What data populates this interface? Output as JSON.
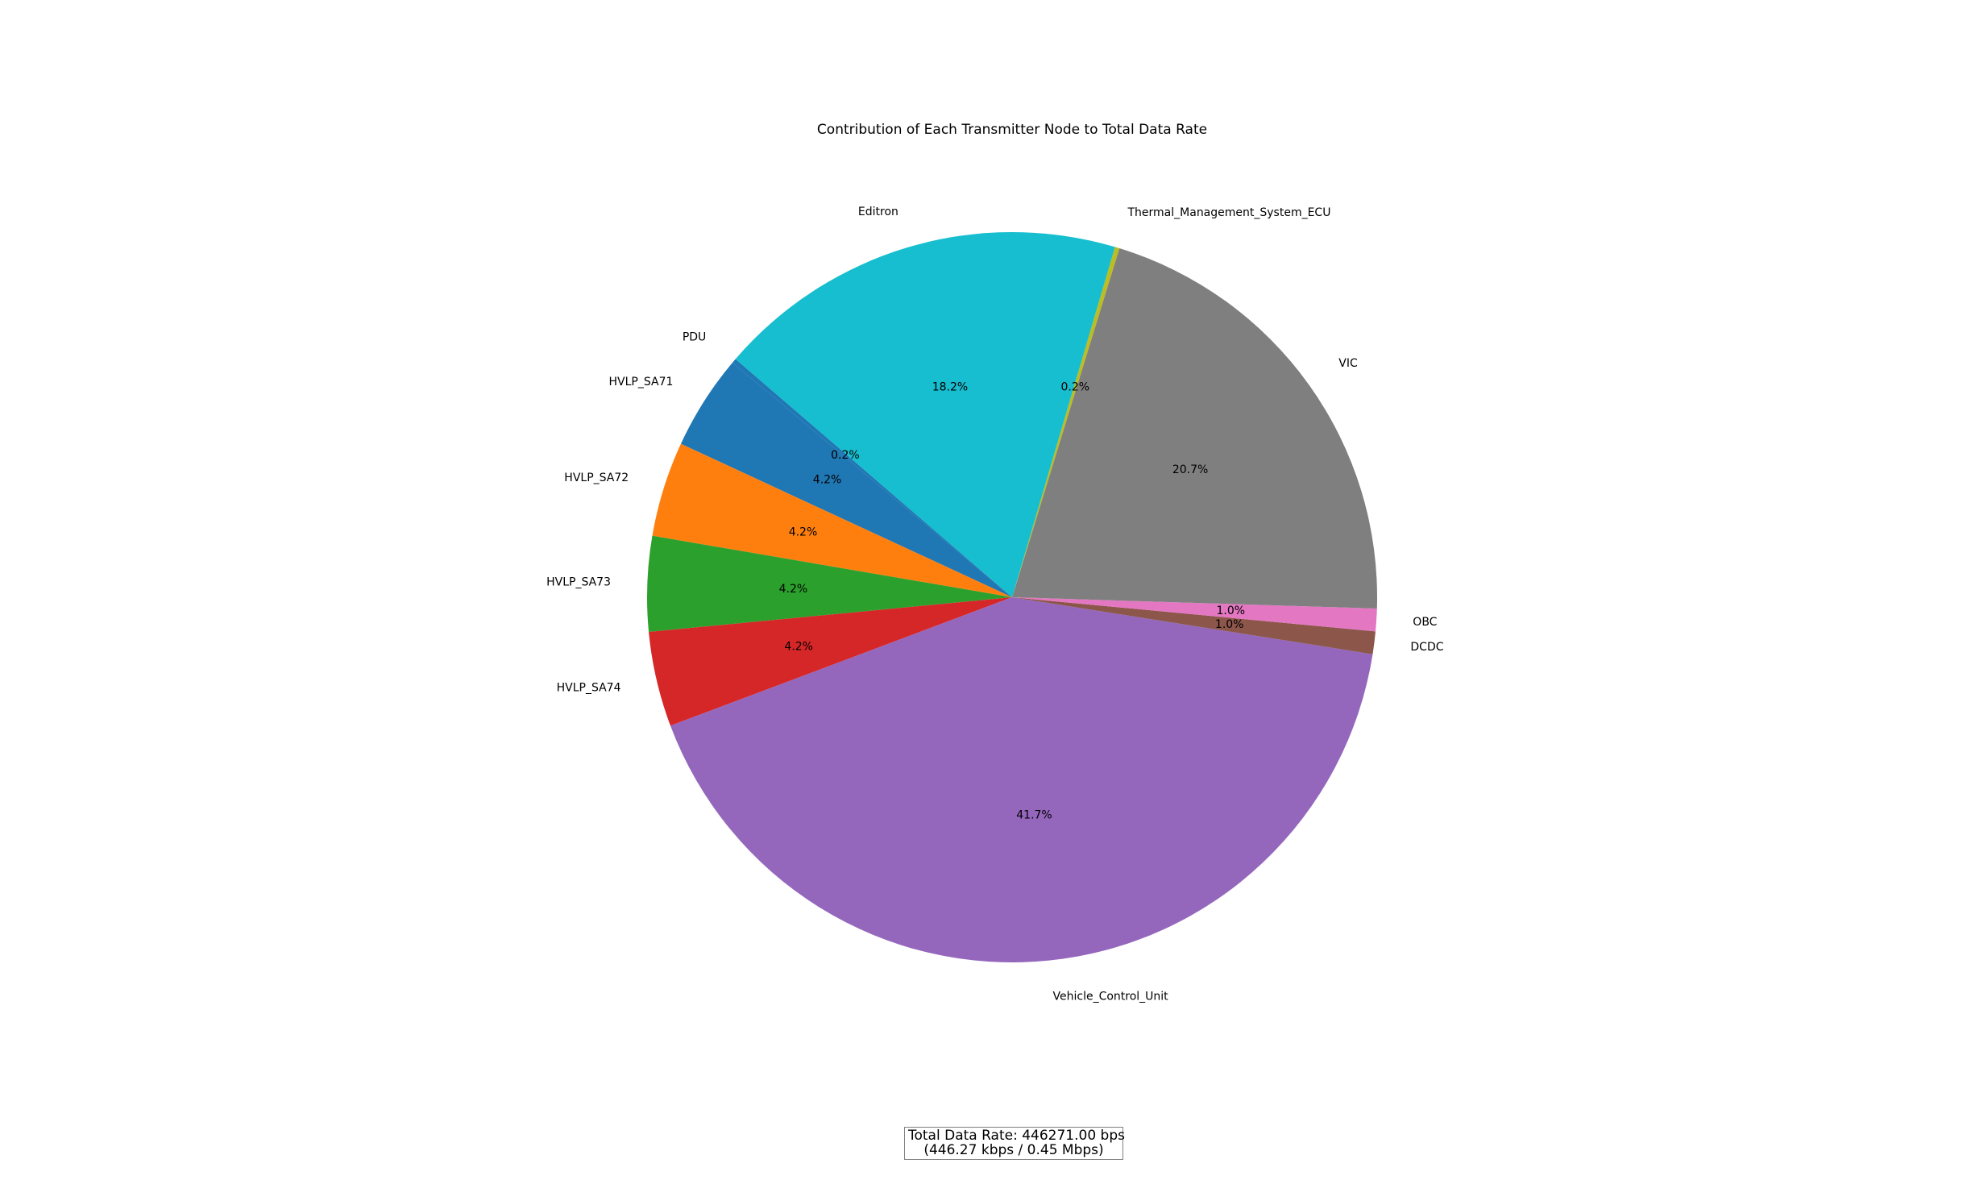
{
  "chart_data": {
    "type": "pie",
    "title": "Contribution of Each Transmitter Node to Total Data Rate",
    "slices": [
      {
        "label": "HVLP_SA71",
        "percent": 4.2,
        "label_text": "4.2%",
        "color": "#1f77b4"
      },
      {
        "label": "HVLP_SA72",
        "percent": 4.2,
        "label_text": "4.2%",
        "color": "#ff7f0e"
      },
      {
        "label": "HVLP_SA73",
        "percent": 4.2,
        "label_text": "4.2%",
        "color": "#2ca02c"
      },
      {
        "label": "HVLP_SA74",
        "percent": 4.2,
        "label_text": "4.2%",
        "color": "#d62728"
      },
      {
        "label": "Vehicle_Control_Unit",
        "percent": 41.7,
        "label_text": "41.7%",
        "color": "#9467bd"
      },
      {
        "label": "DCDC",
        "percent": 1.0,
        "label_text": "1.0%",
        "color": "#8c564b"
      },
      {
        "label": "OBC",
        "percent": 1.0,
        "label_text": "1.0%",
        "color": "#e377c2"
      },
      {
        "label": "VIC",
        "percent": 20.7,
        "label_text": "20.7%",
        "color": "#7f7f7f"
      },
      {
        "label": "Thermal_Management_System_ECU",
        "percent": 0.2,
        "label_text": "0.2%",
        "color": "#bcbd22"
      },
      {
        "label": "Editron",
        "percent": 18.2,
        "label_text": "18.2%",
        "color": "#17becf"
      },
      {
        "label": "PDU",
        "percent": 0.2,
        "label_text": "0.2%",
        "color": "#1f77b4"
      }
    ],
    "start_angle_deg": 140,
    "direction": "counterclockwise",
    "legend": "none"
  },
  "summary": {
    "line1": "Total Data Rate: 446271.00 bps",
    "line2": "(446.27 kbps / 0.45 Mbps)"
  }
}
